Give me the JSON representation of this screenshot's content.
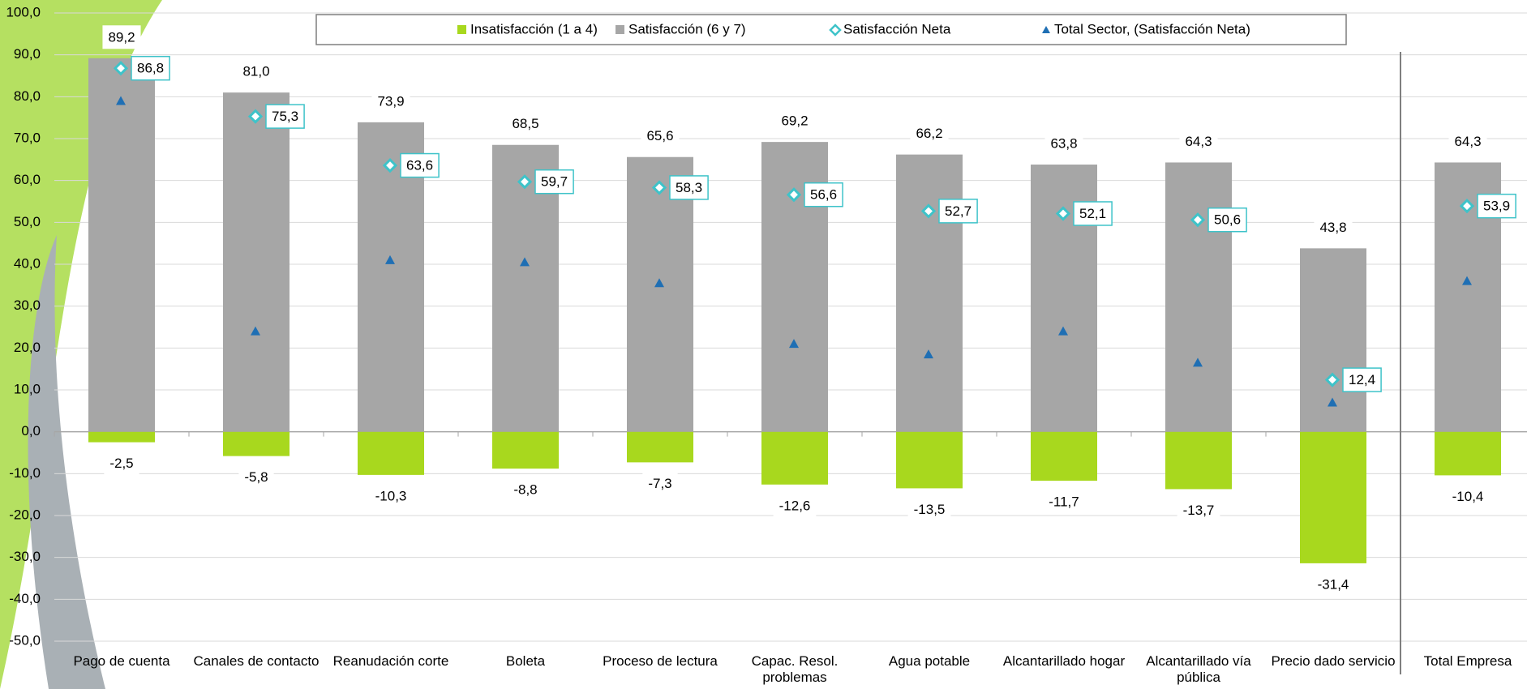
{
  "chart_data": {
    "type": "bar",
    "categories": [
      "Pago de cuenta",
      "Canales de contacto",
      "Reanudación corte",
      "Boleta",
      "Proceso de lectura",
      "Capac. Resol. problemas",
      "Agua potable",
      "Alcantarillado hogar",
      "Alcantarillado vía pública",
      "Precio dado servicio",
      "Total Empresa"
    ],
    "series": [
      {
        "name": "Insatisfacción (1 a 4)",
        "type": "bar",
        "color": "#a8d81e",
        "values": [
          -2.5,
          -5.8,
          -10.3,
          -8.8,
          -7.3,
          -12.6,
          -13.5,
          -11.7,
          -13.7,
          -31.4,
          -10.4
        ],
        "value_labels": [
          "-2,5",
          "-5,8",
          "-10,3",
          "-8,8",
          "-7,3",
          "-12,6",
          "-13,5",
          "-11,7",
          "-13,7",
          "-31,4",
          "-10,4"
        ]
      },
      {
        "name": "Satisfacción (6 y 7)",
        "type": "bar",
        "color": "#a6a6a6",
        "values": [
          89.2,
          81.0,
          73.9,
          68.5,
          65.6,
          69.2,
          66.2,
          63.8,
          64.3,
          43.8,
          64.3
        ],
        "value_labels": [
          "89,2",
          "81,0",
          "73,9",
          "68,5",
          "65,6",
          "69,2",
          "66,2",
          "63,8",
          "64,3",
          "43,8",
          "64,3"
        ]
      },
      {
        "name": "Satisfacción Neta",
        "type": "scatter",
        "marker": "diamond",
        "color": "#3ec3c9",
        "values": [
          86.8,
          75.3,
          63.6,
          59.7,
          58.3,
          56.6,
          52.7,
          52.1,
          50.6,
          12.4,
          53.9
        ],
        "value_labels": [
          "86,8",
          "75,3",
          "63,6",
          "59,7",
          "58,3",
          "56,6",
          "52,7",
          "52,1",
          "50,6",
          "12,4",
          "53,9"
        ]
      },
      {
        "name": "Total Sector, (Satisfacción Neta)",
        "type": "scatter",
        "marker": "triangle",
        "color": "#1f6fb4",
        "values": [
          79,
          24,
          41,
          40.5,
          35.5,
          21,
          18.5,
          24,
          16.5,
          7,
          36
        ]
      }
    ],
    "ylim": [
      -50,
      100
    ],
    "yticks": [
      {
        "value": -50,
        "label": "-50,0"
      },
      {
        "value": -40,
        "label": "-40,0"
      },
      {
        "value": -30,
        "label": "-30,0"
      },
      {
        "value": -20,
        "label": "-20,0"
      },
      {
        "value": -10,
        "label": "-10,0"
      },
      {
        "value": 0,
        "label": "0,0"
      },
      {
        "value": 10,
        "label": "10,0"
      },
      {
        "value": 20,
        "label": "20,0"
      },
      {
        "value": 30,
        "label": "30,0"
      },
      {
        "value": 40,
        "label": "40,0"
      },
      {
        "value": 50,
        "label": "50,0"
      },
      {
        "value": 60,
        "label": "60,0"
      },
      {
        "value": 70,
        "label": "70,0"
      },
      {
        "value": 80,
        "label": "80,0"
      },
      {
        "value": 90,
        "label": "90,0"
      },
      {
        "value": 100,
        "label": "100,0"
      }
    ],
    "grid": true,
    "legend": "top"
  }
}
